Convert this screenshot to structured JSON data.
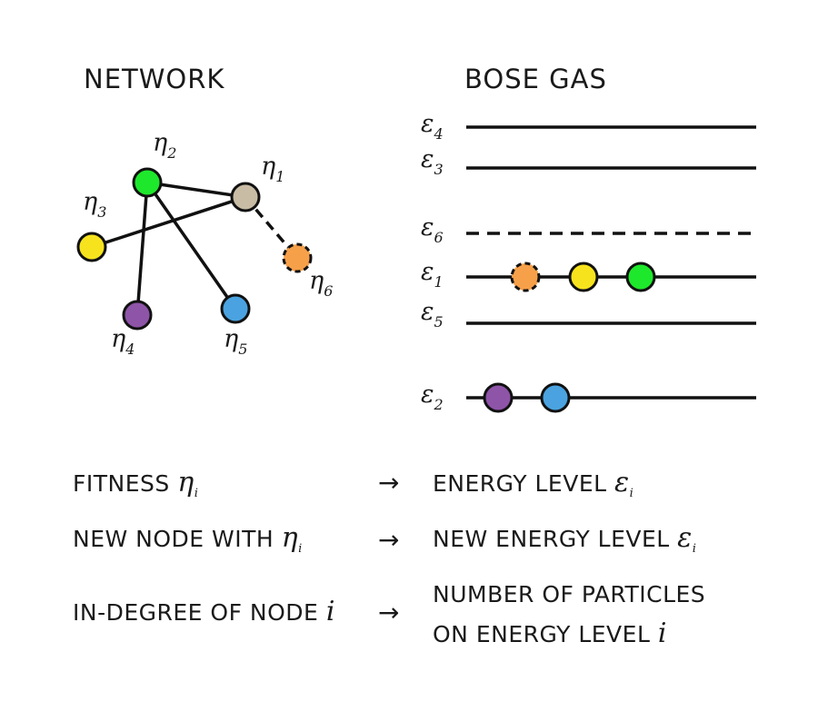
{
  "headings": {
    "network": "NETWORK",
    "bose_gas": "BOSE GAS"
  },
  "network": {
    "nodes": [
      {
        "id": "1",
        "symbol": "η",
        "sub": "1",
        "color": "#c9bca5"
      },
      {
        "id": "2",
        "symbol": "η",
        "sub": "2",
        "color": "#1ee82b"
      },
      {
        "id": "3",
        "symbol": "η",
        "sub": "3",
        "color": "#f7e31d"
      },
      {
        "id": "4",
        "symbol": "η",
        "sub": "4",
        "color": "#8e54a8"
      },
      {
        "id": "5",
        "symbol": "η",
        "sub": "5",
        "color": "#4aa3e0"
      },
      {
        "id": "6",
        "symbol": "η",
        "sub": "6",
        "color": "#f7a04a",
        "new": true
      }
    ]
  },
  "energy_levels": [
    {
      "id": "4",
      "symbol": "ε",
      "sub": "4"
    },
    {
      "id": "3",
      "symbol": "ε",
      "sub": "3"
    },
    {
      "id": "6",
      "symbol": "ε",
      "sub": "6",
      "new": true
    },
    {
      "id": "1",
      "symbol": "ε",
      "sub": "1"
    },
    {
      "id": "5",
      "symbol": "ε",
      "sub": "5"
    },
    {
      "id": "2",
      "symbol": "ε",
      "sub": "2"
    }
  ],
  "mapping": [
    {
      "left": "FITNESS ",
      "left_sym": "η",
      "left_sub": "i",
      "arrow": "→",
      "right": "ENERGY LEVEL ",
      "right_sym": "ε",
      "right_sub": "i"
    },
    {
      "left": "NEW NODE WITH ",
      "left_sym": "η",
      "left_sub": "i",
      "arrow": "→",
      "right": "NEW ENERGY LEVEL ",
      "right_sym": "ε",
      "right_sub": "i"
    },
    {
      "left": "IN-DEGREE OF NODE ",
      "left_sym": "i",
      "arrow": "→",
      "right_line1": "NUMBER OF PARTICLES",
      "right_line2": "ON ENERGY LEVEL ",
      "right_sym": "i"
    }
  ]
}
